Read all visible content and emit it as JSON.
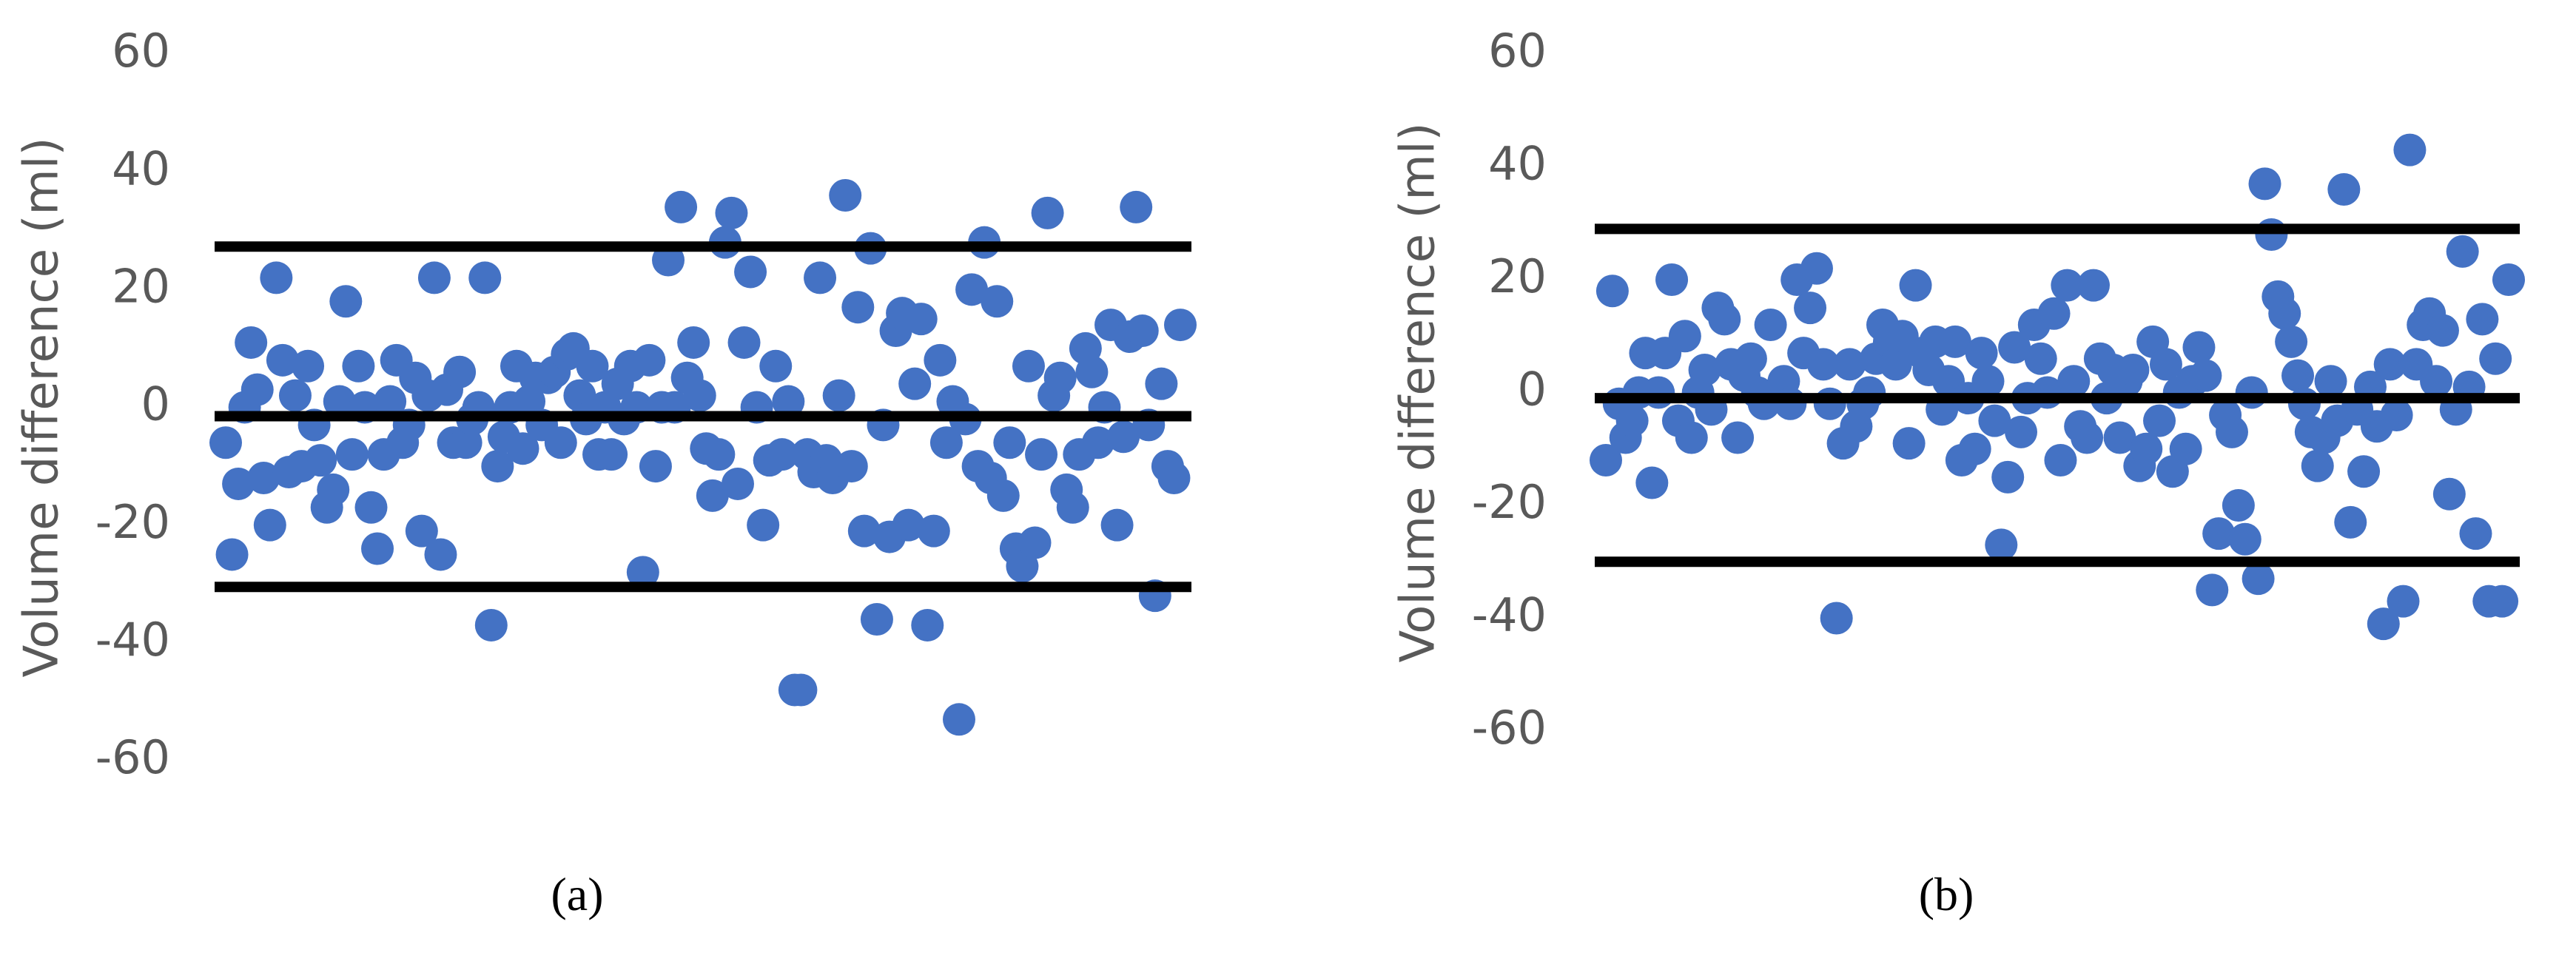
{
  "chart_data": [
    {
      "type": "scatter",
      "y_label": "Volume difference (ml)",
      "caption": "(a)",
      "color": "#4472c4",
      "ylim": [
        -60,
        60
      ],
      "yticks": [
        -60,
        -40,
        -20,
        0,
        20,
        40,
        60
      ],
      "hlines": [
        27.3,
        -1.5,
        -30.5
      ],
      "hline_color": "#000000",
      "values": [
        -6,
        -25,
        -13,
        0,
        11,
        3,
        -12,
        -20,
        22,
        8,
        -11,
        2,
        -10,
        7,
        -3,
        -9,
        -17,
        -14,
        1,
        18,
        -8,
        7,
        0,
        -17,
        -24,
        -8,
        1,
        8,
        -6,
        -3,
        5,
        -21,
        2,
        22,
        -25,
        3,
        -6,
        6,
        -6,
        -2,
        0,
        22,
        -37,
        -10,
        -5,
        0,
        7,
        -7,
        1,
        5,
        -3,
        5,
        6,
        -6,
        9,
        10,
        2,
        -2,
        7,
        -8,
        0,
        -8,
        4,
        -2,
        7,
        0,
        -28,
        8,
        -10,
        0,
        25,
        0,
        34,
        5,
        11,
        2,
        -7,
        -15,
        -8,
        28,
        33,
        -13,
        11,
        23,
        0,
        -20,
        -9,
        7,
        -8,
        1,
        -48,
        -48,
        -8,
        -11,
        22,
        -9,
        -12,
        2,
        36,
        -10,
        17,
        -21,
        27,
        -36,
        -3,
        -22,
        13,
        16,
        -20,
        4,
        15,
        -37,
        -21,
        8,
        -6,
        1,
        -53,
        -2,
        20,
        -10,
        28,
        -12,
        18,
        -15,
        -6,
        -24,
        -27,
        7,
        -23,
        -8,
        33,
        2,
        5,
        -14,
        -17,
        -8,
        10,
        6,
        -6,
        0,
        14,
        -20,
        -5,
        12,
        34,
        13,
        -3,
        -32,
        4,
        -10,
        -12,
        14
      ]
    },
    {
      "type": "scatter",
      "y_label": "Volume difference (ml)",
      "caption": "(b)",
      "color": "#4472c4",
      "ylim": [
        -60,
        60
      ],
      "yticks": [
        -60,
        -40,
        -20,
        0,
        20,
        40,
        60
      ],
      "hlines": [
        29,
        -1,
        -30
      ],
      "hline_color": "#000000",
      "values": [
        -12,
        18,
        -2,
        -8,
        -5,
        0,
        7,
        -16,
        0,
        7,
        20,
        -5,
        10,
        -8,
        0,
        4,
        -3,
        15,
        13,
        5,
        -8,
        3,
        6,
        0,
        -2,
        12,
        0,
        2,
        -2,
        20,
        7,
        15,
        22,
        5,
        -2,
        -40,
        -9,
        5,
        -6,
        -2,
        0,
        6,
        12,
        9,
        5,
        10,
        -9,
        19,
        7,
        4,
        9,
        -3,
        2,
        9,
        -12,
        -1,
        -10,
        7,
        2,
        -5,
        -27,
        -15,
        8,
        -7,
        -1,
        12,
        6,
        0,
        14,
        -12,
        19,
        2,
        -6,
        -8,
        19,
        6,
        -1,
        4,
        -8,
        2,
        4,
        -13,
        -10,
        9,
        -5,
        5,
        -14,
        0,
        -10,
        2,
        8,
        3,
        -35,
        -25,
        -4,
        -7,
        -20,
        -26,
        0,
        -33,
        37,
        28,
        17,
        14,
        9,
        3,
        -2,
        -7,
        -13,
        -8,
        2,
        -5,
        36,
        -23,
        -3,
        -14,
        1,
        -6,
        -41,
        5,
        -4,
        -37,
        43,
        5,
        12,
        14,
        2,
        11,
        -18,
        -3,
        25,
        1,
        -25,
        13,
        -37,
        6,
        -37,
        20
      ]
    }
  ]
}
